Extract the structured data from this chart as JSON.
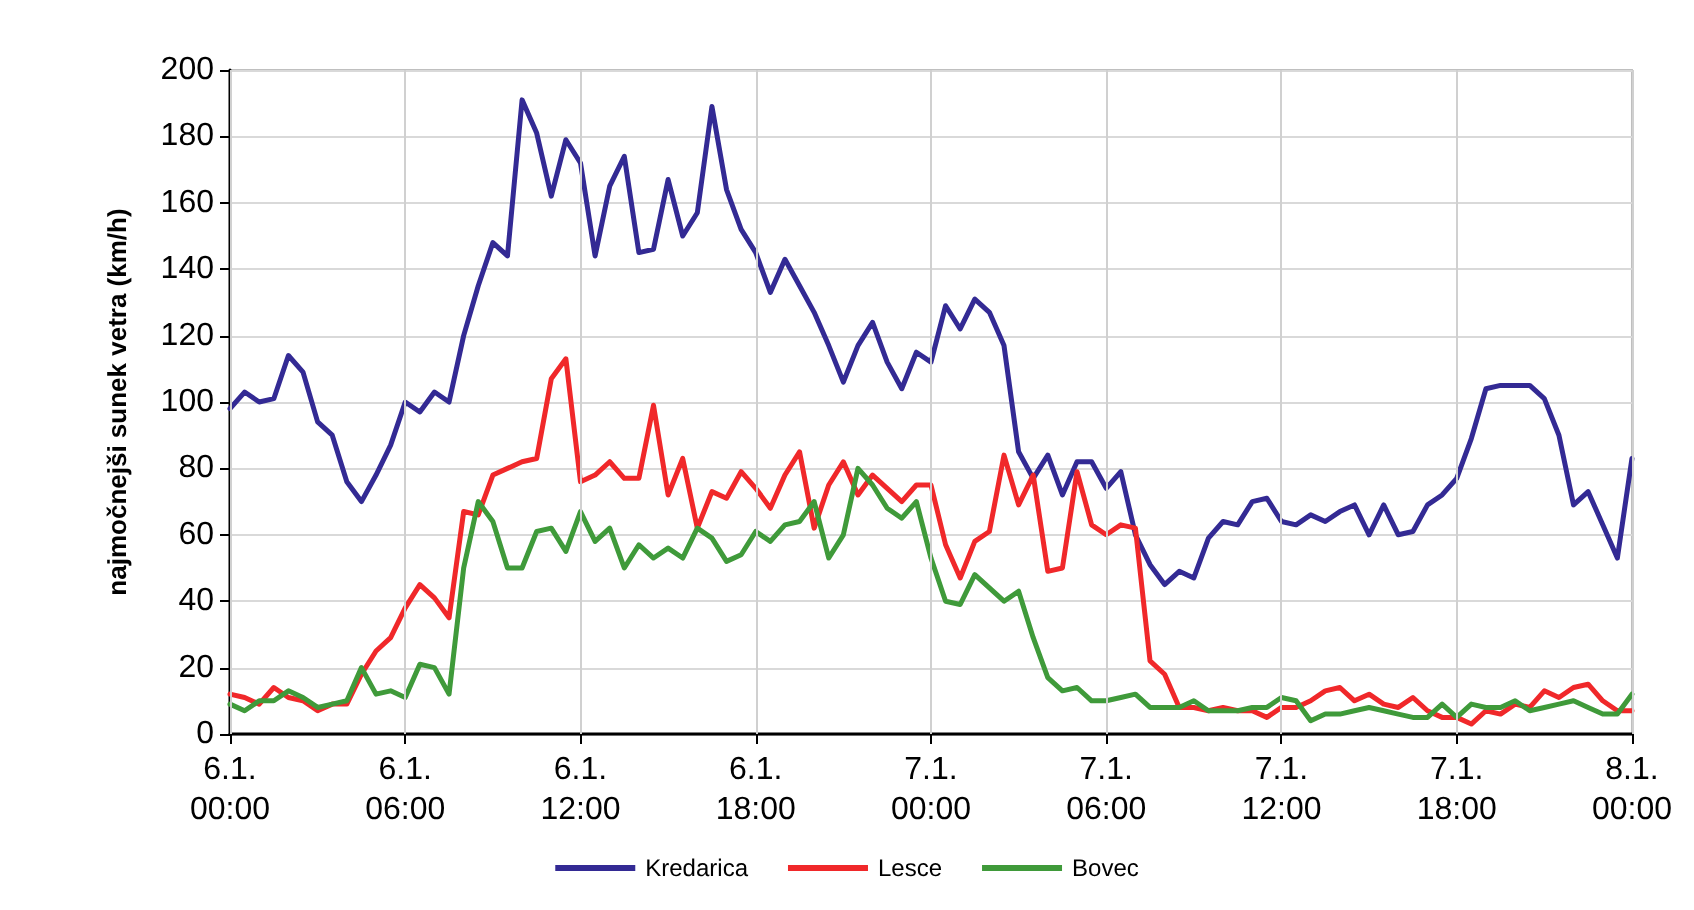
{
  "chart_data": {
    "type": "line",
    "ylabel": "najmočnejši sunek vetra (km/h)",
    "x": [
      "--01-06T00:00",
      "--01-06T00:30",
      "--01-06T01:00",
      "--01-06T01:30",
      "--01-06T02:00",
      "--01-06T02:30",
      "--01-06T03:00",
      "--01-06T03:30",
      "--01-06T04:00",
      "--01-06T04:30",
      "--01-06T05:00",
      "--01-06T05:30",
      "--01-06T06:00",
      "--01-06T06:30",
      "--01-06T07:00",
      "--01-06T07:30",
      "--01-06T08:00",
      "--01-06T08:30",
      "--01-06T09:00",
      "--01-06T09:30",
      "--01-06T10:00",
      "--01-06T10:30",
      "--01-06T11:00",
      "--01-06T11:30",
      "--01-06T12:00",
      "--01-06T12:30",
      "--01-06T13:00",
      "--01-06T13:30",
      "--01-06T14:00",
      "--01-06T14:30",
      "--01-06T15:00",
      "--01-06T15:30",
      "--01-06T16:00",
      "--01-06T16:30",
      "--01-06T17:00",
      "--01-06T17:30",
      "--01-06T18:00",
      "--01-06T18:30",
      "--01-06T19:00",
      "--01-06T19:30",
      "--01-06T20:00",
      "--01-06T20:30",
      "--01-06T21:00",
      "--01-06T21:30",
      "--01-06T22:00",
      "--01-06T22:30",
      "--01-06T23:00",
      "--01-06T23:30",
      "--01-07T00:00",
      "--01-07T00:30",
      "--01-07T01:00",
      "--01-07T01:30",
      "--01-07T02:00",
      "--01-07T02:30",
      "--01-07T03:00",
      "--01-07T03:30",
      "--01-07T04:00",
      "--01-07T04:30",
      "--01-07T05:00",
      "--01-07T05:30",
      "--01-07T06:00",
      "--01-07T06:30",
      "--01-07T07:00",
      "--01-07T07:30",
      "--01-07T08:00",
      "--01-07T08:30",
      "--01-07T09:00",
      "--01-07T09:30",
      "--01-07T10:00",
      "--01-07T10:30",
      "--01-07T11:00",
      "--01-07T11:30",
      "--01-07T12:00",
      "--01-07T12:30",
      "--01-07T13:00",
      "--01-07T13:30",
      "--01-07T14:00",
      "--01-07T14:30",
      "--01-07T15:00",
      "--01-07T15:30",
      "--01-07T16:00",
      "--01-07T16:30",
      "--01-07T17:00",
      "--01-07T17:30",
      "--01-07T18:00",
      "--01-07T18:30",
      "--01-07T19:00",
      "--01-07T19:30",
      "--01-07T20:00",
      "--01-07T20:30",
      "--01-07T21:00",
      "--01-07T21:30",
      "--01-07T22:00",
      "--01-07T22:30",
      "--01-07T23:00",
      "--01-07T23:30",
      "--01-08T00:00"
    ],
    "series": [
      {
        "name": "Kredarica",
        "color": "#332a94",
        "values": [
          98,
          103,
          100,
          101,
          114,
          109,
          94,
          90,
          76,
          70,
          78,
          87,
          100,
          97,
          103,
          100,
          120,
          135,
          148,
          144,
          191,
          181,
          162,
          179,
          172,
          144,
          165,
          174,
          145,
          146,
          167,
          150,
          157,
          189,
          164,
          152,
          145,
          133,
          143,
          135,
          127,
          117,
          106,
          117,
          124,
          112,
          104,
          115,
          112,
          129,
          122,
          131,
          127,
          117,
          85,
          77,
          84,
          72,
          82,
          82,
          74,
          79,
          60,
          51,
          45,
          49,
          47,
          59,
          64,
          63,
          70,
          71,
          64,
          63,
          66,
          64,
          67,
          69,
          60,
          69,
          60,
          61,
          69,
          72,
          77,
          89,
          104,
          105,
          105,
          105,
          101,
          90,
          69,
          73,
          63,
          53,
          83
        ]
      },
      {
        "name": "Lesce",
        "color": "#f0282a",
        "values": [
          12,
          11,
          9,
          14,
          11,
          10,
          7,
          9,
          9,
          18,
          25,
          29,
          38,
          45,
          41,
          35,
          67,
          66,
          78,
          80,
          82,
          83,
          107,
          113,
          76,
          78,
          82,
          77,
          77,
          99,
          72,
          83,
          62,
          73,
          71,
          79,
          74,
          68,
          78,
          85,
          62,
          75,
          82,
          72,
          78,
          74,
          70,
          75,
          75,
          57,
          47,
          58,
          61,
          84,
          69,
          78,
          49,
          50,
          79,
          63,
          60,
          63,
          62,
          22,
          18,
          8,
          8,
          7,
          8,
          7,
          7,
          5,
          8,
          8,
          10,
          13,
          14,
          10,
          12,
          9,
          8,
          11,
          7,
          5,
          5,
          3,
          7,
          6,
          9,
          8,
          13,
          11,
          14,
          15,
          10,
          7,
          7
        ]
      },
      {
        "name": "Bovec",
        "color": "#3f9a3a",
        "values": [
          9,
          7,
          10,
          10,
          13,
          11,
          8,
          9,
          10,
          20,
          12,
          13,
          11,
          21,
          20,
          12,
          50,
          70,
          64,
          50,
          50,
          61,
          62,
          55,
          67,
          58,
          62,
          50,
          57,
          53,
          56,
          53,
          62,
          59,
          52,
          54,
          61,
          58,
          63,
          64,
          70,
          53,
          60,
          80,
          75,
          68,
          65,
          70,
          53,
          40,
          39,
          48,
          44,
          40,
          43,
          29,
          17,
          13,
          14,
          10,
          10,
          11,
          12,
          8,
          8,
          8,
          10,
          7,
          7,
          7,
          8,
          8,
          11,
          10,
          4,
          6,
          6,
          7,
          8,
          7,
          6,
          5,
          5,
          9,
          5,
          9,
          8,
          8,
          10,
          7,
          8,
          9,
          10,
          8,
          6,
          6,
          12
        ]
      }
    ],
    "xlim": [
      "--01-06T00:00",
      "--01-08T00:00"
    ],
    "xticks": [
      {
        "value": "--01-06T00:00",
        "label": "6.1.\n00:00"
      },
      {
        "value": "--01-06T06:00",
        "label": "6.1.\n06:00"
      },
      {
        "value": "--01-06T12:00",
        "label": "6.1.\n12:00"
      },
      {
        "value": "--01-06T18:00",
        "label": "6.1.\n18:00"
      },
      {
        "value": "--01-07T00:00",
        "label": "7.1.\n00:00"
      },
      {
        "value": "--01-07T06:00",
        "label": "7.1.\n06:00"
      },
      {
        "value": "--01-07T12:00",
        "label": "7.1.\n12:00"
      },
      {
        "value": "--01-07T18:00",
        "label": "7.1.\n18:00"
      },
      {
        "value": "--01-08T00:00",
        "label": "8.1.\n00:00"
      }
    ],
    "ylim": [
      0,
      200
    ],
    "yticks": [
      0,
      20,
      40,
      60,
      80,
      100,
      120,
      140,
      160,
      180,
      200
    ],
    "grid": true,
    "legend": "bottom",
    "marker": "none",
    "line_style": "solid"
  }
}
